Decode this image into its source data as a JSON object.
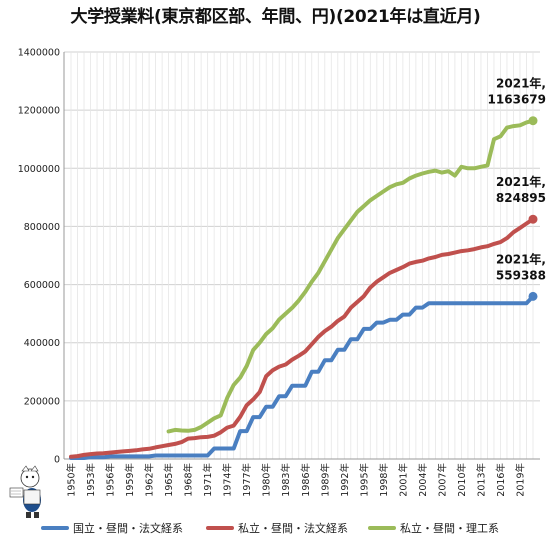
{
  "chart_data": {
    "type": "line",
    "title": "大学授業料(東京都区部、年間、円)(2021年は直近月)",
    "xlabel": "",
    "ylabel": "",
    "ylim": [
      0,
      1400000
    ],
    "yticks": [
      0,
      200000,
      400000,
      600000,
      800000,
      1000000,
      1200000,
      1400000
    ],
    "ytick_labels": [
      "0",
      "200000",
      "400000",
      "600000",
      "800000",
      "1000000",
      "1200000",
      "1400000"
    ],
    "xlim": [
      1950,
      2021
    ],
    "xtick_labels": [
      "1950年",
      "1953年",
      "1956年",
      "1959年",
      "1962年",
      "1965年",
      "1968年",
      "1971年",
      "1974年",
      "1977年",
      "1980年",
      "1983年",
      "1986年",
      "1989年",
      "1992年",
      "1995年",
      "1998年",
      "2001年",
      "2004年",
      "2007年",
      "2010年",
      "2013年",
      "2016年",
      "2019年"
    ],
    "grid": true,
    "legend_position": "bottom",
    "series": [
      {
        "name": "国立・昼間・法文経系",
        "color": "#4a7fc1",
        "x": [
          1950,
          1951,
          1952,
          1953,
          1954,
          1955,
          1956,
          1957,
          1958,
          1959,
          1960,
          1961,
          1962,
          1963,
          1964,
          1965,
          1966,
          1967,
          1968,
          1969,
          1970,
          1971,
          1972,
          1973,
          1974,
          1975,
          1976,
          1977,
          1978,
          1979,
          1980,
          1981,
          1982,
          1983,
          1984,
          1985,
          1986,
          1987,
          1988,
          1989,
          1990,
          1991,
          1992,
          1993,
          1994,
          1995,
          1996,
          1997,
          1998,
          1999,
          2000,
          2001,
          2002,
          2003,
          2004,
          2005,
          2006,
          2007,
          2008,
          2009,
          2010,
          2011,
          2012,
          2013,
          2014,
          2015,
          2016,
          2017,
          2018,
          2019,
          2020,
          2021
        ],
        "values": [
          3600,
          3600,
          3600,
          6000,
          6000,
          6000,
          9000,
          9000,
          9000,
          9000,
          9000,
          9000,
          9000,
          12000,
          12000,
          12000,
          12000,
          12000,
          12000,
          12000,
          12000,
          12000,
          36000,
          36000,
          36000,
          36000,
          96000,
          96000,
          144000,
          144000,
          180000,
          180000,
          216000,
          216000,
          252000,
          252000,
          252000,
          300000,
          300000,
          339600,
          339600,
          375600,
          375600,
          411600,
          411600,
          447600,
          447600,
          469200,
          469200,
          478800,
          478800,
          496800,
          496800,
          520800,
          520800,
          535800,
          535800,
          535800,
          535800,
          535800,
          535800,
          535800,
          535800,
          535800,
          535800,
          535800,
          535800,
          535800,
          535800,
          535800,
          535800,
          559388
        ]
      },
      {
        "name": "私立・昼間・法文経系",
        "color": "#c0504d",
        "x": [
          1950,
          1951,
          1952,
          1953,
          1954,
          1955,
          1956,
          1957,
          1958,
          1959,
          1960,
          1961,
          1962,
          1963,
          1964,
          1965,
          1966,
          1967,
          1968,
          1969,
          1970,
          1971,
          1972,
          1973,
          1974,
          1975,
          1976,
          1977,
          1978,
          1979,
          1980,
          1981,
          1982,
          1983,
          1984,
          1985,
          1986,
          1987,
          1988,
          1989,
          1990,
          1991,
          1992,
          1993,
          1994,
          1995,
          1996,
          1997,
          1998,
          1999,
          2000,
          2001,
          2002,
          2003,
          2004,
          2005,
          2006,
          2007,
          2008,
          2009,
          2010,
          2011,
          2012,
          2013,
          2014,
          2015,
          2016,
          2017,
          2018,
          2019,
          2020,
          2021
        ],
        "values": [
          8000,
          10000,
          14000,
          17000,
          19000,
          20000,
          22000,
          24000,
          26000,
          28000,
          30000,
          33000,
          35000,
          40000,
          44000,
          48000,
          52000,
          58000,
          70000,
          72000,
          75000,
          76000,
          80000,
          92000,
          108000,
          115000,
          145000,
          185000,
          205000,
          230000,
          285000,
          305000,
          318000,
          325000,
          342000,
          355000,
          370000,
          395000,
          420000,
          440000,
          455000,
          475000,
          490000,
          520000,
          540000,
          560000,
          590000,
          610000,
          625000,
          640000,
          650000,
          660000,
          672000,
          678000,
          682000,
          690000,
          695000,
          702000,
          705000,
          710000,
          715000,
          718000,
          722000,
          728000,
          732000,
          740000,
          746000,
          760000,
          780000,
          795000,
          810000,
          824895
        ]
      },
      {
        "name": "私立・昼間・理工系",
        "color": "#9bbb59",
        "x": [
          1965,
          1966,
          1967,
          1968,
          1969,
          1970,
          1971,
          1972,
          1973,
          1974,
          1975,
          1976,
          1977,
          1978,
          1979,
          1980,
          1981,
          1982,
          1983,
          1984,
          1985,
          1986,
          1987,
          1988,
          1989,
          1990,
          1991,
          1992,
          1993,
          1994,
          1995,
          1996,
          1997,
          1998,
          1999,
          2000,
          2001,
          2002,
          2003,
          2004,
          2005,
          2006,
          2007,
          2008,
          2009,
          2010,
          2011,
          2012,
          2013,
          2014,
          2015,
          2016,
          2017,
          2018,
          2019,
          2020,
          2021
        ],
        "values": [
          95000,
          100000,
          98000,
          97000,
          100000,
          110000,
          125000,
          140000,
          150000,
          210000,
          255000,
          280000,
          320000,
          375000,
          400000,
          430000,
          450000,
          480000,
          500000,
          520000,
          545000,
          575000,
          610000,
          640000,
          680000,
          720000,
          760000,
          790000,
          820000,
          850000,
          870000,
          890000,
          905000,
          920000,
          935000,
          945000,
          950000,
          965000,
          975000,
          982000,
          988000,
          992000,
          985000,
          990000,
          975000,
          1005000,
          1000000,
          1000000,
          1005000,
          1010000,
          1100000,
          1110000,
          1140000,
          1145000,
          1148000,
          1158000,
          1163679
        ]
      }
    ],
    "end_labels": [
      {
        "year": "2021年,",
        "value": "1163679"
      },
      {
        "year": "2021年,",
        "value": "824895"
      },
      {
        "year": "2021年,",
        "value": "559388"
      }
    ]
  }
}
